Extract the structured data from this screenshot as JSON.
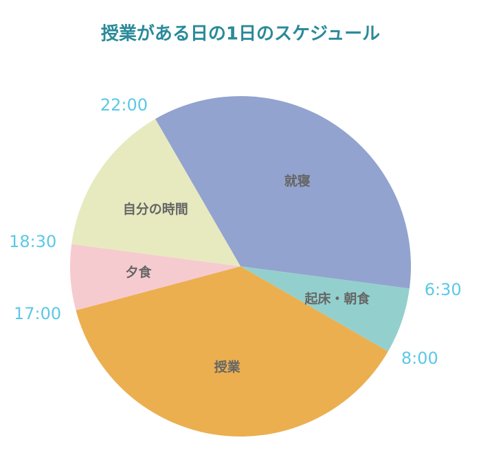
{
  "chart_data": {
    "type": "pie",
    "title": "授業がある日の1日のスケジュール",
    "categories": [
      "就寝",
      "起床・朝食",
      "授業",
      "夕食",
      "自分の時間"
    ],
    "values": [
      8.5,
      1.5,
      9,
      1.5,
      3.5
    ],
    "start_labels": [
      "22:00",
      "6:30",
      "8:00",
      "17:00",
      "18:30"
    ],
    "colors": [
      "#93a3cf",
      "#93d0cd",
      "#ebaf50",
      "#f6cbcf",
      "#e7eabf"
    ],
    "startangle": 330,
    "counterclock": false
  }
}
